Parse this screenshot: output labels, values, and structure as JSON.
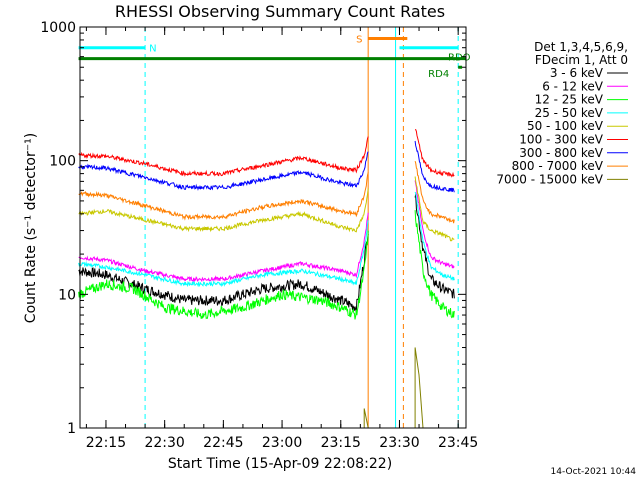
{
  "chart_data": {
    "type": "line",
    "title": "RHESSI Observing Summary Count Rates",
    "xlabel": "Start Time (15-Apr-09 22:08:22)",
    "ylabel": "Count Rate (s⁻¹ detector⁻¹)",
    "y_scale": "log",
    "ylim": [
      1,
      1000
    ],
    "xlim": [
      "22:08:22",
      "23:47:00"
    ],
    "x_ticks": [
      "22:15",
      "22:30",
      "22:45",
      "23:00",
      "23:15",
      "23:30",
      "23:45"
    ],
    "y_ticks": [
      "1",
      "10",
      "100",
      "1000"
    ],
    "legend_header": [
      "Det 1,3,4,5,6,9,",
      "FDecim 1, Att 0"
    ],
    "series": [
      {
        "name": "3 - 6 keV",
        "color": "#000000",
        "before": [
          [
            "22:08",
            15
          ],
          [
            "22:15",
            14
          ],
          [
            "22:25",
            11
          ],
          [
            "22:35",
            9
          ],
          [
            "22:45",
            9
          ],
          [
            "22:55",
            11
          ],
          [
            "23:05",
            12
          ],
          [
            "23:15",
            9
          ],
          [
            "23:19",
            8
          ],
          [
            "23:21",
            18
          ],
          [
            "23:22",
            30
          ]
        ],
        "after": [
          [
            "23:34",
            55
          ],
          [
            "23:36",
            22
          ],
          [
            "23:38",
            13
          ],
          [
            "23:41",
            11
          ],
          [
            "23:44",
            10
          ]
        ]
      },
      {
        "name": "6 - 12 keV",
        "color": "#ff00ff",
        "before": [
          [
            "22:08",
            19
          ],
          [
            "22:15",
            18
          ],
          [
            "22:25",
            15
          ],
          [
            "22:35",
            13
          ],
          [
            "22:45",
            13
          ],
          [
            "22:55",
            15
          ],
          [
            "23:05",
            17
          ],
          [
            "23:15",
            15
          ],
          [
            "23:19",
            14
          ],
          [
            "23:21",
            25
          ],
          [
            "23:22",
            40
          ]
        ],
        "after": [
          [
            "23:34",
            70
          ],
          [
            "23:36",
            30
          ],
          [
            "23:38",
            19
          ],
          [
            "23:41",
            17
          ],
          [
            "23:44",
            16
          ]
        ]
      },
      {
        "name": "12 - 25 keV",
        "color": "#00ff00",
        "before": [
          [
            "22:08",
            10
          ],
          [
            "22:15",
            12
          ],
          [
            "22:22",
            11
          ],
          [
            "22:30",
            8
          ],
          [
            "22:40",
            7
          ],
          [
            "22:50",
            8
          ],
          [
            "23:00",
            10
          ],
          [
            "23:10",
            9
          ],
          [
            "23:15",
            8
          ],
          [
            "23:19",
            7
          ],
          [
            "23:21",
            15
          ],
          [
            "23:22",
            28
          ]
        ],
        "after": [
          [
            "23:34",
            40
          ],
          [
            "23:36",
            15
          ],
          [
            "23:38",
            10
          ],
          [
            "23:41",
            8
          ],
          [
            "23:44",
            7
          ]
        ]
      },
      {
        "name": "25 - 50 keV",
        "color": "#00ffff",
        "before": [
          [
            "22:08",
            17
          ],
          [
            "22:15",
            16
          ],
          [
            "22:25",
            14
          ],
          [
            "22:35",
            12
          ],
          [
            "22:45",
            12
          ],
          [
            "22:55",
            14
          ],
          [
            "23:05",
            15
          ],
          [
            "23:15",
            13
          ],
          [
            "23:19",
            12
          ],
          [
            "23:21",
            22
          ],
          [
            "23:22",
            35
          ]
        ],
        "after": [
          [
            "23:34",
            60
          ],
          [
            "23:36",
            25
          ],
          [
            "23:38",
            16
          ],
          [
            "23:41",
            14
          ],
          [
            "23:44",
            13
          ]
        ]
      },
      {
        "name": "50 - 100 keV",
        "color": "#c8c800",
        "before": [
          [
            "22:08",
            40
          ],
          [
            "22:15",
            42
          ],
          [
            "22:25",
            36
          ],
          [
            "22:35",
            31
          ],
          [
            "22:45",
            31
          ],
          [
            "22:55",
            36
          ],
          [
            "23:05",
            40
          ],
          [
            "23:15",
            32
          ],
          [
            "23:19",
            30
          ],
          [
            "23:21",
            40
          ],
          [
            "23:22",
            60
          ]
        ],
        "after": [
          [
            "23:34",
            75
          ],
          [
            "23:36",
            35
          ],
          [
            "23:38",
            30
          ],
          [
            "23:41",
            28
          ],
          [
            "23:44",
            25
          ]
        ]
      },
      {
        "name": "100 - 300 keV",
        "color": "#ff0000",
        "before": [
          [
            "22:08",
            110
          ],
          [
            "22:15",
            108
          ],
          [
            "22:25",
            95
          ],
          [
            "22:35",
            80
          ],
          [
            "22:45",
            80
          ],
          [
            "22:55",
            92
          ],
          [
            "23:05",
            105
          ],
          [
            "23:15",
            88
          ],
          [
            "23:19",
            85
          ],
          [
            "23:21",
            110
          ],
          [
            "23:22",
            150
          ]
        ],
        "after": [
          [
            "23:34",
            175
          ],
          [
            "23:36",
            100
          ],
          [
            "23:38",
            85
          ],
          [
            "23:41",
            80
          ],
          [
            "23:44",
            78
          ]
        ]
      },
      {
        "name": "300 - 800 keV",
        "color": "#0000ff",
        "before": [
          [
            "22:08",
            90
          ],
          [
            "22:15",
            88
          ],
          [
            "22:25",
            75
          ],
          [
            "22:35",
            63
          ],
          [
            "22:45",
            63
          ],
          [
            "22:55",
            72
          ],
          [
            "23:05",
            82
          ],
          [
            "23:15",
            68
          ],
          [
            "23:19",
            65
          ],
          [
            "23:21",
            85
          ],
          [
            "23:22",
            120
          ]
        ],
        "after": [
          [
            "23:34",
            140
          ],
          [
            "23:36",
            75
          ],
          [
            "23:38",
            65
          ],
          [
            "23:41",
            62
          ],
          [
            "23:44",
            60
          ]
        ]
      },
      {
        "name": "800 - 7000 keV",
        "color": "#ff7f00",
        "before": [
          [
            "22:08",
            57
          ],
          [
            "22:15",
            55
          ],
          [
            "22:25",
            46
          ],
          [
            "22:35",
            38
          ],
          [
            "22:45",
            38
          ],
          [
            "22:55",
            45
          ],
          [
            "23:05",
            50
          ],
          [
            "23:15",
            42
          ],
          [
            "23:19",
            40
          ],
          [
            "23:21",
            55
          ],
          [
            "23:22",
            80
          ]
        ],
        "after": [
          [
            "23:34",
            100
          ],
          [
            "23:36",
            50
          ],
          [
            "23:38",
            40
          ],
          [
            "23:41",
            38
          ],
          [
            "23:44",
            35
          ]
        ]
      },
      {
        "name": "7000 - 15000 keV",
        "color": "#808000",
        "before": [
          [
            "23:21",
            1.0
          ],
          [
            "23:21",
            1.4
          ],
          [
            "23:22",
            1.0
          ]
        ],
        "after": [
          [
            "23:34",
            1.0
          ],
          [
            "23:34",
            4.0
          ],
          [
            "23:35",
            2.5
          ],
          [
            "23:36",
            1.0
          ]
        ]
      }
    ],
    "intervals": [
      {
        "label": "N",
        "color": "#00ffff",
        "y": 700,
        "start": "22:08",
        "end": "22:25"
      },
      {
        "label": "",
        "color": "#00ffff",
        "y": 700,
        "start": "23:30",
        "end": "23:45"
      },
      {
        "label": "S",
        "color": "#ff7f00",
        "y": 820,
        "start": "23:22",
        "end": "23:32"
      },
      {
        "label": "RDO",
        "color": "#008000",
        "y": 580,
        "start": "22:08",
        "end": "23:47"
      },
      {
        "label": "RD4",
        "color": "#008000",
        "y": 500,
        "start": "23:45",
        "end": "23:46"
      }
    ],
    "vlines": [
      {
        "time": "22:08:22",
        "color": "#00ffff",
        "style": "solid"
      },
      {
        "time": "22:25",
        "color": "#00ffff",
        "style": "dash"
      },
      {
        "time": "23:22",
        "color": "#ff7f00",
        "style": "solid"
      },
      {
        "time": "23:29",
        "color": "#00ffff",
        "style": "solid"
      },
      {
        "time": "23:31",
        "color": "#ff7f00",
        "style": "dash"
      },
      {
        "time": "23:45",
        "color": "#00ffff",
        "style": "dash"
      }
    ],
    "timestamp": "14-Oct-2021 10:44"
  }
}
